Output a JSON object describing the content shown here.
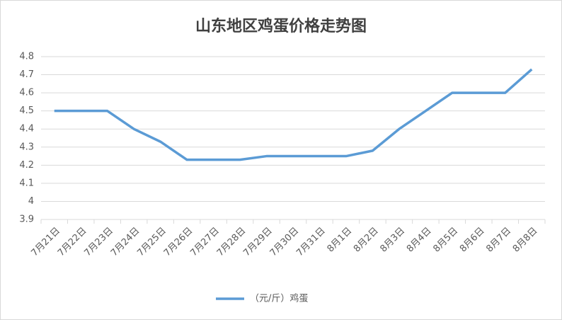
{
  "chart_data": {
    "type": "line",
    "title": "山东地区鸡蛋价格走势图",
    "categories": [
      "7月21日",
      "7月22日",
      "7月23日",
      "7月24日",
      "7月25日",
      "7月26日",
      "7月27日",
      "7月28日",
      "7月29日",
      "7月30日",
      "7月31日",
      "8月1日",
      "8月2日",
      "8月3日",
      "8月4日",
      "8月5日",
      "8月6日",
      "8月7日",
      "8月8日"
    ],
    "series": [
      {
        "name": "（元/斤）鸡蛋",
        "color": "#5b9bd5",
        "values": [
          4.5,
          4.5,
          4.5,
          4.4,
          4.33,
          4.23,
          4.23,
          4.23,
          4.25,
          4.25,
          4.25,
          4.25,
          4.28,
          4.4,
          4.5,
          4.6,
          4.6,
          4.6,
          4.73
        ]
      }
    ],
    "ylim": [
      3.9,
      4.8
    ],
    "yticks": [
      3.9,
      4,
      4.1,
      4.2,
      4.3,
      4.4,
      4.5,
      4.6,
      4.7,
      4.8
    ],
    "grid": true,
    "legend": "bottom"
  }
}
